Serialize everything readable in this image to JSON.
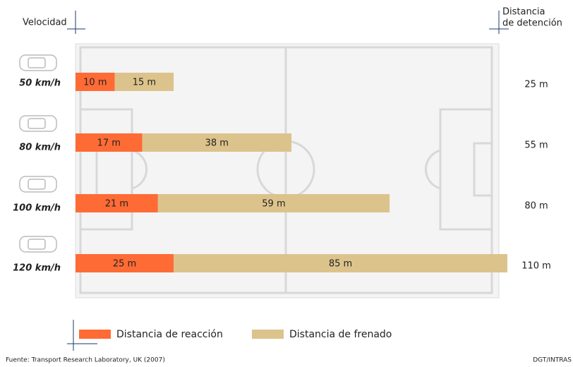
{
  "chart_data": {
    "type": "bar",
    "orientation": "horizontal",
    "stacked": true,
    "category_title": "Velocidad",
    "categories": [
      "50 km/h",
      "80 km/h",
      "100 km/h",
      "120 km/h"
    ],
    "series": [
      {
        "name": "Distancia de reacción",
        "color": "#ff6b35",
        "values": [
          10,
          17,
          21,
          25
        ],
        "value_labels": [
          "10 m",
          "17 m",
          "21 m",
          "25 m"
        ]
      },
      {
        "name": "Distancia de frenado",
        "color": "#dcc38c",
        "values": [
          15,
          38,
          59,
          85
        ],
        "value_labels": [
          "15 m",
          "38 m",
          "59 m",
          "85 m"
        ]
      }
    ],
    "totals": {
      "title_lines": [
        "Distancia",
        "de detención"
      ],
      "values": [
        25,
        55,
        80,
        110
      ],
      "value_labels": [
        "25 m",
        "55 m",
        "80 m",
        "110 m"
      ]
    },
    "source": "Fuente: Transport Research Laboratory, UK (2007)",
    "credit": "DGT/INTRAS"
  }
}
